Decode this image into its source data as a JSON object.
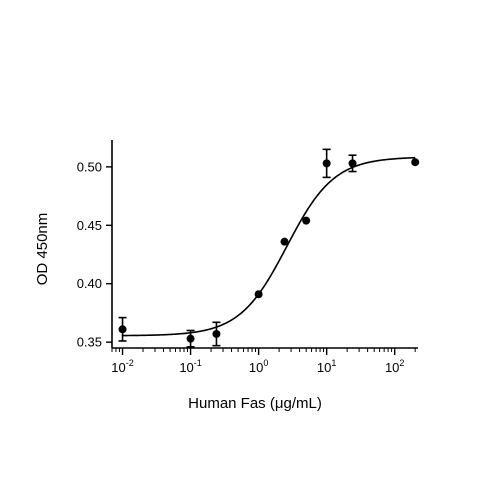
{
  "chart_data": {
    "type": "scatter",
    "xlabel": "Human Fas (μg/mL)",
    "ylabel": "OD 450nm",
    "x_scale": "log",
    "xlim": [
      0.007,
      220
    ],
    "ylim": [
      0.345,
      0.523
    ],
    "x_ticks": [
      {
        "value": 0.01,
        "base": "10",
        "exp": "-2"
      },
      {
        "value": 0.1,
        "base": "10",
        "exp": "-1"
      },
      {
        "value": 1,
        "base": "10",
        "exp": "0"
      },
      {
        "value": 10,
        "base": "10",
        "exp": "1"
      },
      {
        "value": 100,
        "base": "10",
        "exp": "2"
      }
    ],
    "y_ticks": [
      "0.35",
      "0.40",
      "0.45",
      "0.50"
    ],
    "grid": false,
    "legend": "none",
    "points": [
      {
        "x": 0.01,
        "y": 0.361,
        "err": 0.01
      },
      {
        "x": 0.1,
        "y": 0.353,
        "err": 0.007
      },
      {
        "x": 0.24,
        "y": 0.357,
        "err": 0.01
      },
      {
        "x": 1,
        "y": 0.391,
        "err": 0
      },
      {
        "x": 2.4,
        "y": 0.436,
        "err": 0
      },
      {
        "x": 5,
        "y": 0.454,
        "err": 0
      },
      {
        "x": 10,
        "y": 0.503,
        "err": 0.012
      },
      {
        "x": 24,
        "y": 0.503,
        "err": 0.007
      },
      {
        "x": 200,
        "y": 0.504,
        "err": 0
      }
    ],
    "fit": {
      "model": "4PL",
      "bottom": 0.3555,
      "top": 0.5085,
      "ec50": 2.6,
      "hill": 1.25,
      "x_range": [
        0.01,
        200
      ]
    }
  }
}
